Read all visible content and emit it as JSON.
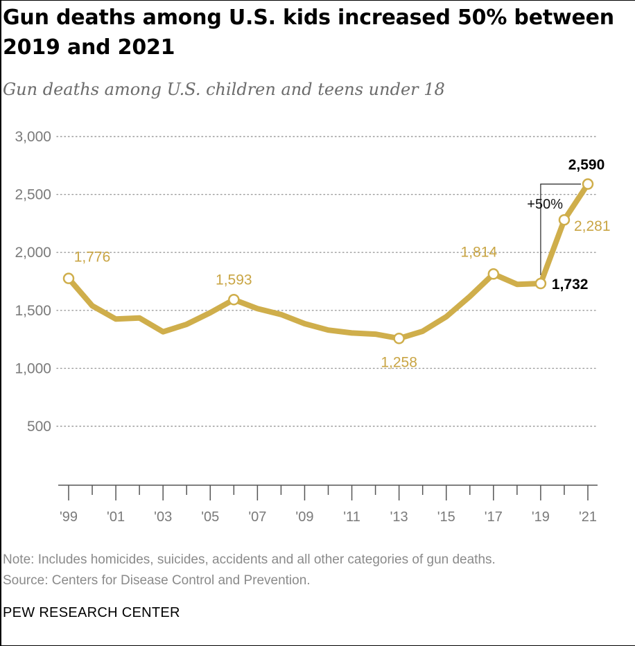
{
  "title": "Gun deaths among U.S. kids increased 50% between 2019 and 2021",
  "subtitle": "Gun deaths among U.S. children and teens under 18",
  "note": "Note: Includes homicides, suicides, accidents and all other categories of gun deaths.",
  "source": "Source: Centers for Disease Control and Prevention.",
  "brand": "PEW RESEARCH CENTER",
  "colors": {
    "line": "#cfae4b",
    "label": "#c9a544",
    "axis": "#7a7a7a",
    "grid": "#9a9a9a",
    "emphasis": "#000000"
  },
  "chart_data": {
    "type": "line",
    "x": [
      1999,
      2000,
      2001,
      2002,
      2003,
      2004,
      2005,
      2006,
      2007,
      2008,
      2009,
      2010,
      2011,
      2012,
      2013,
      2014,
      2015,
      2016,
      2017,
      2018,
      2019,
      2020,
      2021
    ],
    "series": [
      {
        "values": [
          1776,
          1540,
          1425,
          1435,
          1315,
          1380,
          1480,
          1593,
          1515,
          1465,
          1385,
          1330,
          1305,
          1295,
          1258,
          1320,
          1445,
          1620,
          1814,
          1725,
          1732,
          2281,
          2590
        ]
      }
    ],
    "ylim": [
      0,
      3000
    ],
    "yticks": [
      500,
      1000,
      1500,
      2000,
      2500,
      3000
    ],
    "ytick_labels": [
      "500",
      "1,000",
      "1,500",
      "2,000",
      "2,500",
      "3,000"
    ],
    "xtick_labels": [
      "'99",
      "'01",
      "'03",
      "'05",
      "'07",
      "'09",
      "'11",
      "'13",
      "'15",
      "'17",
      "'19",
      "'21"
    ],
    "grid": true,
    "annotations": [
      {
        "year": 1999,
        "text": "1,776",
        "style": "muted"
      },
      {
        "year": 2006,
        "text": "1,593",
        "style": "muted"
      },
      {
        "year": 2013,
        "text": "1,258",
        "style": "muted"
      },
      {
        "year": 2017,
        "text": "1,814",
        "style": "muted"
      },
      {
        "year": 2019,
        "text": "1,732",
        "style": "bold"
      },
      {
        "year": 2020,
        "text": "2,281",
        "style": "muted"
      },
      {
        "year": 2021,
        "text": "2,590",
        "style": "bold"
      }
    ],
    "change_label": "+50%"
  }
}
